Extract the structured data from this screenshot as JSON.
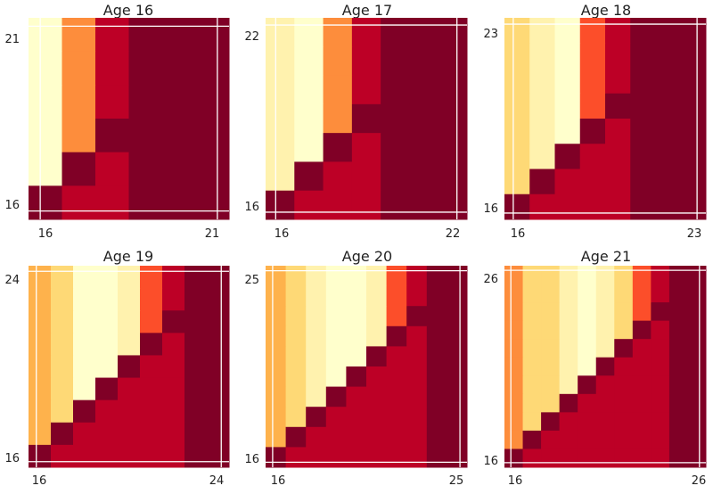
{
  "colors": {
    "background": "#ffffff",
    "gridline": "#ffffff",
    "diagonal": "#800026",
    "colorscale": [
      "#ffffcc",
      "#fff2ae",
      "#fed976",
      "#feb24c",
      "#fd8d3c",
      "#fc4e2a",
      "#e31a1c",
      "#bd0026",
      "#800026"
    ]
  },
  "chart_data": [
    {
      "type": "heatmap",
      "title": "Age 16",
      "x_tick_labels": [
        "16",
        "21"
      ],
      "y_tick_labels": [
        "16",
        "21"
      ],
      "size": 6,
      "column_levels": [
        0.0,
        0.55,
        0.88,
        1.0,
        1.0,
        1.0
      ],
      "grid": true
    },
    {
      "type": "heatmap",
      "title": "Age 17",
      "x_tick_labels": [
        "16",
        "22"
      ],
      "y_tick_labels": [
        "16",
        "22"
      ],
      "size": 7,
      "column_levels": [
        0.07,
        0.0,
        0.55,
        0.88,
        1.0,
        1.0,
        1.0
      ],
      "grid": true
    },
    {
      "type": "heatmap",
      "title": "Age 18",
      "x_tick_labels": [
        "16",
        "23"
      ],
      "y_tick_labels": [
        "16",
        "23"
      ],
      "size": 8,
      "column_levels": [
        0.25,
        0.08,
        0.0,
        0.58,
        0.88,
        0.95,
        1.0,
        1.0
      ],
      "grid": true
    },
    {
      "type": "heatmap",
      "title": "Age 19",
      "x_tick_labels": [
        "16",
        "24"
      ],
      "y_tick_labels": [
        "16",
        "24"
      ],
      "size": 9,
      "column_levels": [
        0.36,
        0.22,
        0.05,
        0.0,
        0.07,
        0.62,
        0.88,
        0.95,
        1.0
      ],
      "grid": true
    },
    {
      "type": "heatmap",
      "title": "Age 20",
      "x_tick_labels": [
        "16",
        "25"
      ],
      "y_tick_labels": [
        "16",
        "25"
      ],
      "size": 10,
      "column_levels": [
        0.36,
        0.25,
        0.12,
        0.05,
        0.06,
        0.12,
        0.62,
        0.88,
        0.95,
        1.0
      ],
      "grid": true
    },
    {
      "type": "heatmap",
      "title": "Age 21",
      "x_tick_labels": [
        "16",
        "26"
      ],
      "y_tick_labels": [
        "16",
        "26"
      ],
      "size": 11,
      "column_levels": [
        0.45,
        0.3,
        0.2,
        0.12,
        0.05,
        0.08,
        0.25,
        0.62,
        0.88,
        0.95,
        1.0
      ],
      "grid": true
    }
  ]
}
